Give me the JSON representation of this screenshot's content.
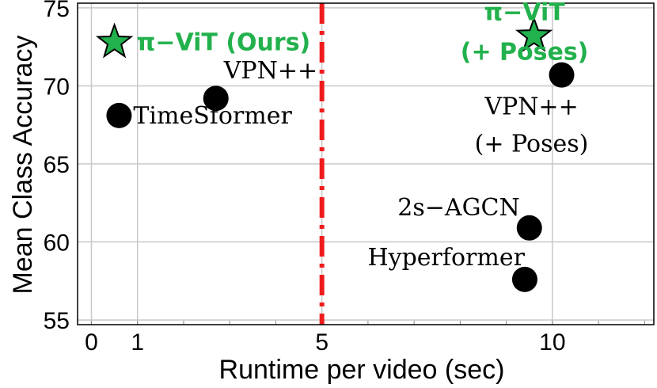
{
  "chart_data": {
    "type": "scatter",
    "xlabel": "Runtime per video (sec)",
    "ylabel": "Mean Class Accuracy",
    "xlim": [
      -0.3,
      12.2
    ],
    "ylim": [
      54.7,
      75.3
    ],
    "xticks": [
      0,
      1,
      5,
      10
    ],
    "xtick_labels": [
      "0",
      "1",
      "5",
      "10"
    ],
    "yticks": [
      55,
      60,
      65,
      70,
      75
    ],
    "ytick_labels": [
      "55",
      "60",
      "65",
      "70",
      "75"
    ],
    "grid": true,
    "vline": {
      "x": 5.0,
      "color": "#ee1c1c",
      "style": "dash-dot"
    },
    "colors": {
      "ours": "#22b14c",
      "ours_edge": "#000000",
      "baseline": "#000000"
    },
    "points": [
      {
        "label": "π−ViT (Ours)",
        "x": 0.5,
        "y": 72.8,
        "marker": "star",
        "group": "ours"
      },
      {
        "label": "π−ViT",
        "label2": "(+ Poses)",
        "x": 9.6,
        "y": 73.2,
        "marker": "star",
        "group": "ours"
      },
      {
        "label": "TimeSformer",
        "x": 0.6,
        "y": 68.1,
        "marker": "circle",
        "group": "baseline"
      },
      {
        "label": "VPN++",
        "x": 2.7,
        "y": 69.2,
        "marker": "circle",
        "group": "baseline"
      },
      {
        "label": "VPN++",
        "label2": "(+ Poses)",
        "x": 10.2,
        "y": 70.7,
        "marker": "circle",
        "group": "baseline"
      },
      {
        "label": "2s−AGCN",
        "x": 9.5,
        "y": 60.9,
        "marker": "circle",
        "group": "baseline"
      },
      {
        "label": "Hyperformer",
        "x": 9.4,
        "y": 57.6,
        "marker": "circle",
        "group": "baseline"
      }
    ]
  }
}
